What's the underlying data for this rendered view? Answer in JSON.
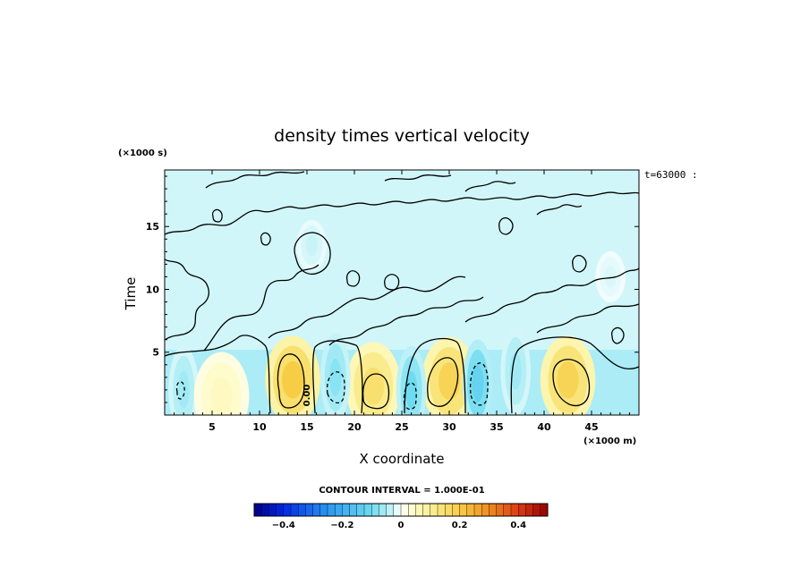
{
  "chart_data": {
    "type": "heatmap",
    "title": "density times vertical velocity",
    "xlabel": "X coordinate",
    "ylabel": "Time",
    "x_units": "(×1000 m)",
    "y_units": "(×1000 s)",
    "time_tag": "t=63000 :",
    "xlim": [
      0,
      50
    ],
    "ylim": [
      0,
      19.5
    ],
    "xticks": [
      5,
      10,
      15,
      20,
      25,
      30,
      35,
      40,
      45
    ],
    "yticks": [
      5,
      10,
      15
    ],
    "contour_interval_label": "CONTOUR INTERVAL = 1.000E-01",
    "contour_label_value": "0.00",
    "colorbar": {
      "range": [
        -0.5,
        0.5
      ],
      "ticks": [
        -0.4,
        -0.2,
        0,
        0.2,
        0.4
      ],
      "tick_labels": [
        "−0.4",
        "−0.2",
        "0",
        "0.2",
        "0.4"
      ]
    },
    "features": [
      {
        "x": 13.5,
        "t": 2.8,
        "sign": "positive",
        "peak": 0.2
      },
      {
        "x": 22.0,
        "t": 2.3,
        "sign": "positive",
        "peak": 0.15
      },
      {
        "x": 30.0,
        "t": 2.7,
        "sign": "positive",
        "peak": 0.18
      },
      {
        "x": 42.5,
        "t": 2.8,
        "sign": "positive",
        "peak": 0.18
      },
      {
        "x": 18.0,
        "t": 3.0,
        "sign": "negative",
        "peak": -0.08
      },
      {
        "x": 26.0,
        "t": 2.0,
        "sign": "negative",
        "peak": -0.1
      },
      {
        "x": 33.0,
        "t": 2.5,
        "sign": "negative",
        "peak": -0.12
      },
      {
        "x": 2.0,
        "t": 2.0,
        "sign": "negative",
        "peak": -0.06
      },
      {
        "x": 37.0,
        "t": 3.5,
        "sign": "negative",
        "peak": -0.06
      },
      {
        "x": 6.0,
        "t": 1.5,
        "sign": "positive",
        "peak": 0.05
      },
      {
        "x": 15.5,
        "t": 13.5,
        "sign": "negative",
        "peak": -0.03
      },
      {
        "x": 47.0,
        "t": 11.0,
        "sign": "negative",
        "peak": -0.02
      }
    ]
  }
}
